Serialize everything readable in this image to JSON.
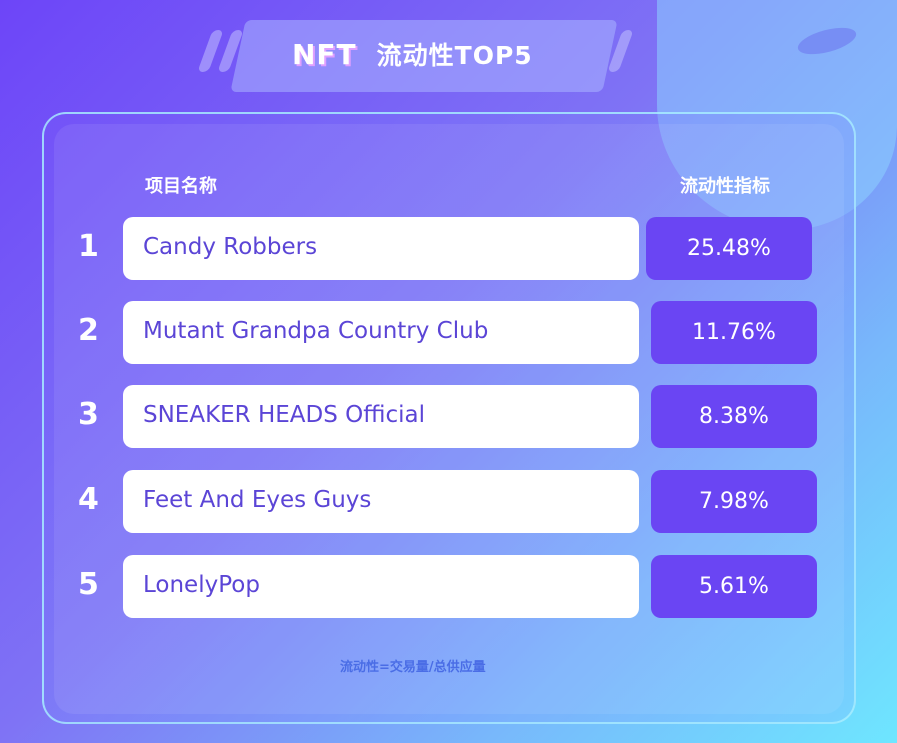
{
  "title": {
    "prefix": "NFT",
    "main": "流动性TOP5"
  },
  "headers": {
    "name": "项目名称",
    "metric": "流动性指标"
  },
  "rows": [
    {
      "rank": "1",
      "name": "Candy Robbers",
      "value": "25.48%"
    },
    {
      "rank": "2",
      "name": "Mutant Grandpa Country Club",
      "value": "11.76%"
    },
    {
      "rank": "3",
      "name": "SNEAKER HEADS Official",
      "value": "8.38%"
    },
    {
      "rank": "4",
      "name": "Feet And Eyes Guys",
      "value": "7.98%"
    },
    {
      "rank": "5",
      "name": "LonelyPop",
      "value": "5.61%"
    }
  ],
  "footnote": "流动性=交易量/总供应量",
  "colors": {
    "accent": "#6a45f3",
    "text": "#5b45d6"
  }
}
